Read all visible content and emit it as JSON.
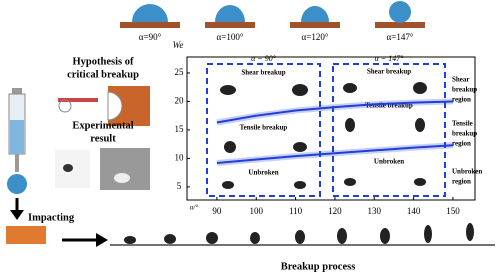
{
  "top_labels": [
    "α=90°",
    "α=100°",
    "α=120°",
    "α=147°"
  ],
  "left": {
    "hypothesis": [
      "Hypothesis of",
      "critical breakup"
    ],
    "experimental": [
      "Experimental",
      "result"
    ],
    "impacting": "Impacting"
  },
  "bottom_label": "Breakup process",
  "chart_data": {
    "type": "line",
    "x_label": "α/°",
    "y_label": "We",
    "x": [
      90,
      100,
      110,
      120,
      130,
      140,
      150
    ],
    "series": [
      {
        "color": "#1f3fd8",
        "values": [
          16.3,
          17.5,
          18.4,
          19.0,
          19.5,
          19.8,
          20.0
        ]
      },
      {
        "color": "#1f3fd8",
        "values": [
          9.2,
          9.8,
          10.4,
          10.9,
          11.4,
          11.9,
          12.3
        ]
      }
    ],
    "xlim": [
      82.4,
      155.6
    ],
    "ylim": [
      2.7,
      27.8
    ],
    "xticks": [
      90,
      100,
      110,
      120,
      130,
      140,
      150
    ],
    "yticks": [
      5,
      10,
      15,
      20,
      25
    ],
    "boxes": [
      {
        "title": "α = 90°",
        "labels": [
          "Shear breakup",
          "Tensile breakup",
          "Unbroken"
        ]
      },
      {
        "title": "α = 147°",
        "labels": [
          "Shear breakup",
          "Tensile breakup",
          "Unbroken"
        ]
      }
    ],
    "regions": [
      [
        "Shear",
        "breakup",
        "region"
      ],
      [
        "Tensile",
        "breakup",
        "region"
      ],
      [
        "Unbroken",
        "region"
      ]
    ]
  }
}
